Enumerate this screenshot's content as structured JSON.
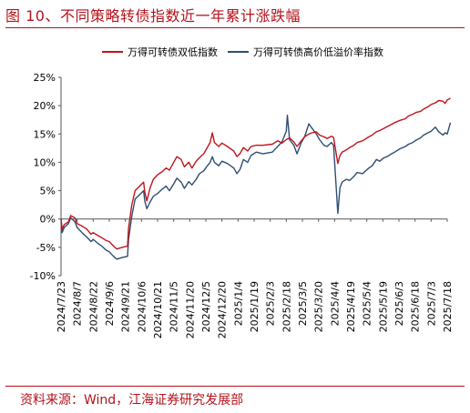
{
  "title": "图 10、不同策略转债指数近一年累计涨跌幅",
  "source": "资料来源：Wind，江海证券研究发展部",
  "colors": {
    "accent": "#b5121b",
    "series1": "#c0141c",
    "series2": "#2e4d73"
  },
  "chart_data": {
    "type": "line",
    "yticks": [
      "25%",
      "20%",
      "15%",
      "10%",
      "5%",
      "0%",
      "-5%",
      "-10%"
    ],
    "ylim": [
      -10,
      25
    ],
    "xticks": [
      "2024/7/23",
      "2024/8/7",
      "2024/8/22",
      "2024/9/6",
      "2024/9/21",
      "2024/10/6",
      "2024/10/21",
      "2024/11/5",
      "2024/11/20",
      "2024/12/5",
      "2024/12/20",
      "2025/1/4",
      "2025/1/19",
      "2025/2/3",
      "2025/2/18",
      "2025/3/5",
      "2025/3/20",
      "2025/4/4",
      "2025/4/19",
      "2025/5/4",
      "2025/5/19",
      "2025/6/3",
      "2025/6/18",
      "2025/7/3",
      "2025/7/18"
    ],
    "legend_position": "top",
    "series": [
      {
        "name": "万得可转债双低指数",
        "points": [
          [
            "2024/7/23",
            0
          ],
          [
            "2024/7/24",
            -1.8
          ],
          [
            "2024/7/26",
            -1.0
          ],
          [
            "2024/7/30",
            -0.5
          ],
          [
            "2024/8/1",
            0.6
          ],
          [
            "2024/8/5",
            0.2
          ],
          [
            "2024/8/7",
            -0.8
          ],
          [
            "2024/8/12",
            -1.3
          ],
          [
            "2024/8/16",
            -1.8
          ],
          [
            "2024/8/20",
            -2.7
          ],
          [
            "2024/8/22",
            -2.4
          ],
          [
            "2024/8/27",
            -3.0
          ],
          [
            "2024/8/30",
            -3.3
          ],
          [
            "2024/9/3",
            -3.8
          ],
          [
            "2024/9/6",
            -4.0
          ],
          [
            "2024/9/10",
            -4.8
          ],
          [
            "2024/9/13",
            -5.3
          ],
          [
            "2024/9/18",
            -5.0
          ],
          [
            "2024/9/23",
            -4.8
          ],
          [
            "2024/9/24",
            -1.5
          ],
          [
            "2024/9/27",
            2.5
          ],
          [
            "2024/9/30",
            5.0
          ],
          [
            "2024/10/8",
            6.5
          ],
          [
            "2024/10/9",
            4.8
          ],
          [
            "2024/10/11",
            3.2
          ],
          [
            "2024/10/14",
            5.5
          ],
          [
            "2024/10/17",
            7.0
          ],
          [
            "2024/10/21",
            7.8
          ],
          [
            "2024/10/25",
            8.3
          ],
          [
            "2024/10/29",
            9.0
          ],
          [
            "2024/11/1",
            8.6
          ],
          [
            "2024/11/5",
            10.0
          ],
          [
            "2024/11/8",
            11.0
          ],
          [
            "2024/11/12",
            10.5
          ],
          [
            "2024/11/15",
            9.2
          ],
          [
            "2024/11/19",
            10.0
          ],
          [
            "2024/11/22",
            9.0
          ],
          [
            "2024/11/26",
            10.2
          ],
          [
            "2024/11/29",
            10.8
          ],
          [
            "2024/12/3",
            11.5
          ],
          [
            "2024/12/6",
            12.5
          ],
          [
            "2024/12/9",
            13.5
          ],
          [
            "2024/12/11",
            15.2
          ],
          [
            "2024/12/13",
            13.5
          ],
          [
            "2024/12/17",
            12.8
          ],
          [
            "2024/12/20",
            13.4
          ],
          [
            "2024/12/25",
            12.8
          ],
          [
            "2024/12/31",
            12.0
          ],
          [
            "2025/1/3",
            11.0
          ],
          [
            "2025/1/6",
            11.6
          ],
          [
            "2025/1/9",
            12.6
          ],
          [
            "2025/1/13",
            12.0
          ],
          [
            "2025/1/16",
            12.8
          ],
          [
            "2025/1/21",
            13.0
          ],
          [
            "2025/1/27",
            13.0
          ],
          [
            "2025/2/5",
            13.2
          ],
          [
            "2025/2/10",
            13.8
          ],
          [
            "2025/2/14",
            13.4
          ],
          [
            "2025/2/18",
            14.0
          ],
          [
            "2025/2/21",
            14.3
          ],
          [
            "2025/2/25",
            13.6
          ],
          [
            "2025/2/28",
            12.8
          ],
          [
            "2025/3/4",
            13.8
          ],
          [
            "2025/3/7",
            14.5
          ],
          [
            "2025/3/11",
            15.0
          ],
          [
            "2025/3/14",
            15.2
          ],
          [
            "2025/3/18",
            15.4
          ],
          [
            "2025/3/21",
            14.8
          ],
          [
            "2025/3/25",
            14.5
          ],
          [
            "2025/3/28",
            14.2
          ],
          [
            "2025/4/1",
            14.6
          ],
          [
            "2025/4/3",
            14.4
          ],
          [
            "2025/4/7",
            9.8
          ],
          [
            "2025/4/9",
            11.2
          ],
          [
            "2025/4/11",
            11.8
          ],
          [
            "2025/4/15",
            12.2
          ],
          [
            "2025/4/18",
            12.6
          ],
          [
            "2025/4/22",
            13.0
          ],
          [
            "2025/4/25",
            13.5
          ],
          [
            "2025/4/30",
            13.8
          ],
          [
            "2025/5/6",
            14.5
          ],
          [
            "2025/5/9",
            14.8
          ],
          [
            "2025/5/13",
            15.4
          ],
          [
            "2025/5/16",
            15.6
          ],
          [
            "2025/5/20",
            16.0
          ],
          [
            "2025/5/23",
            16.3
          ],
          [
            "2025/5/27",
            16.7
          ],
          [
            "2025/5/30",
            17.0
          ],
          [
            "2025/6/4",
            17.4
          ],
          [
            "2025/6/9",
            17.7
          ],
          [
            "2025/6/12",
            18.2
          ],
          [
            "2025/6/16",
            18.5
          ],
          [
            "2025/6/19",
            18.8
          ],
          [
            "2025/6/23",
            19.0
          ],
          [
            "2025/6/26",
            19.4
          ],
          [
            "2025/6/30",
            19.8
          ],
          [
            "2025/7/3",
            20.2
          ],
          [
            "2025/7/7",
            20.5
          ],
          [
            "2025/7/10",
            20.9
          ],
          [
            "2025/7/14",
            20.8
          ],
          [
            "2025/7/16",
            20.4
          ],
          [
            "2025/7/18",
            21.0
          ],
          [
            "2025/7/21",
            21.3
          ]
        ]
      },
      {
        "name": "万得可转债高价低溢价率指数",
        "points": [
          [
            "2024/7/23",
            0
          ],
          [
            "2024/7/24",
            -2.4
          ],
          [
            "2024/7/26",
            -1.5
          ],
          [
            "2024/7/30",
            -0.8
          ],
          [
            "2024/8/1",
            0.2
          ],
          [
            "2024/8/5",
            -0.5
          ],
          [
            "2024/8/7",
            -1.5
          ],
          [
            "2024/8/12",
            -2.5
          ],
          [
            "2024/8/16",
            -3.2
          ],
          [
            "2024/8/20",
            -4.0
          ],
          [
            "2024/8/22",
            -3.6
          ],
          [
            "2024/8/27",
            -4.4
          ],
          [
            "2024/8/30",
            -4.8
          ],
          [
            "2024/9/3",
            -5.5
          ],
          [
            "2024/9/6",
            -5.8
          ],
          [
            "2024/9/10",
            -6.6
          ],
          [
            "2024/9/13",
            -7.1
          ],
          [
            "2024/9/18",
            -6.8
          ],
          [
            "2024/9/23",
            -6.6
          ],
          [
            "2024/9/24",
            -3.5
          ],
          [
            "2024/9/27",
            0.5
          ],
          [
            "2024/9/30",
            3.5
          ],
          [
            "2024/10/8",
            5.0
          ],
          [
            "2024/10/9",
            3.2
          ],
          [
            "2024/10/11",
            1.8
          ],
          [
            "2024/10/14",
            3.0
          ],
          [
            "2024/10/17",
            4.0
          ],
          [
            "2024/10/21",
            4.5
          ],
          [
            "2024/10/25",
            5.2
          ],
          [
            "2024/10/29",
            5.8
          ],
          [
            "2024/11/1",
            5.0
          ],
          [
            "2024/11/5",
            6.2
          ],
          [
            "2024/11/8",
            7.2
          ],
          [
            "2024/11/12",
            6.5
          ],
          [
            "2024/11/15",
            5.4
          ],
          [
            "2024/11/19",
            6.6
          ],
          [
            "2024/11/22",
            6.0
          ],
          [
            "2024/11/26",
            7.0
          ],
          [
            "2024/11/29",
            8.0
          ],
          [
            "2024/12/3",
            8.5
          ],
          [
            "2024/12/6",
            9.3
          ],
          [
            "2024/12/9",
            10.0
          ],
          [
            "2024/12/11",
            11.0
          ],
          [
            "2024/12/13",
            10.0
          ],
          [
            "2024/12/17",
            9.4
          ],
          [
            "2024/12/20",
            10.2
          ],
          [
            "2024/12/25",
            9.8
          ],
          [
            "2024/12/31",
            9.0
          ],
          [
            "2025/1/3",
            8.0
          ],
          [
            "2025/1/6",
            8.8
          ],
          [
            "2025/1/9",
            10.5
          ],
          [
            "2025/1/13",
            10.0
          ],
          [
            "2025/1/16",
            11.2
          ],
          [
            "2025/1/21",
            11.8
          ],
          [
            "2025/1/27",
            11.5
          ],
          [
            "2025/2/5",
            11.8
          ],
          [
            "2025/2/10",
            12.8
          ],
          [
            "2025/2/14",
            13.6
          ],
          [
            "2025/2/18",
            15.5
          ],
          [
            "2025/2/19",
            18.3
          ],
          [
            "2025/2/21",
            14.0
          ],
          [
            "2025/2/25",
            13.0
          ],
          [
            "2025/2/28",
            11.5
          ],
          [
            "2025/3/4",
            13.5
          ],
          [
            "2025/3/7",
            14.5
          ],
          [
            "2025/3/11",
            16.8
          ],
          [
            "2025/3/14",
            16.0
          ],
          [
            "2025/3/18",
            15.0
          ],
          [
            "2025/3/21",
            14.0
          ],
          [
            "2025/3/25",
            13.0
          ],
          [
            "2025/3/28",
            12.8
          ],
          [
            "2025/4/1",
            13.5
          ],
          [
            "2025/4/3",
            13.0
          ],
          [
            "2025/4/7",
            1.0
          ],
          [
            "2025/4/9",
            5.5
          ],
          [
            "2025/4/11",
            6.5
          ],
          [
            "2025/4/15",
            7.0
          ],
          [
            "2025/4/18",
            6.8
          ],
          [
            "2025/4/22",
            7.5
          ],
          [
            "2025/4/25",
            8.2
          ],
          [
            "2025/4/30",
            8.0
          ],
          [
            "2025/5/6",
            9.0
          ],
          [
            "2025/5/9",
            9.4
          ],
          [
            "2025/5/13",
            10.5
          ],
          [
            "2025/5/16",
            10.2
          ],
          [
            "2025/5/20",
            10.8
          ],
          [
            "2025/5/23",
            11.0
          ],
          [
            "2025/5/27",
            11.5
          ],
          [
            "2025/5/30",
            11.8
          ],
          [
            "2025/6/4",
            12.4
          ],
          [
            "2025/6/9",
            12.8
          ],
          [
            "2025/6/12",
            13.2
          ],
          [
            "2025/6/16",
            13.5
          ],
          [
            "2025/6/19",
            13.9
          ],
          [
            "2025/6/23",
            14.3
          ],
          [
            "2025/6/26",
            14.8
          ],
          [
            "2025/6/30",
            15.2
          ],
          [
            "2025/7/3",
            15.5
          ],
          [
            "2025/7/7",
            16.2
          ],
          [
            "2025/7/10",
            15.4
          ],
          [
            "2025/7/14",
            14.8
          ],
          [
            "2025/7/16",
            15.2
          ],
          [
            "2025/7/18",
            15.0
          ],
          [
            "2025/7/21",
            17.0
          ]
        ]
      }
    ]
  }
}
